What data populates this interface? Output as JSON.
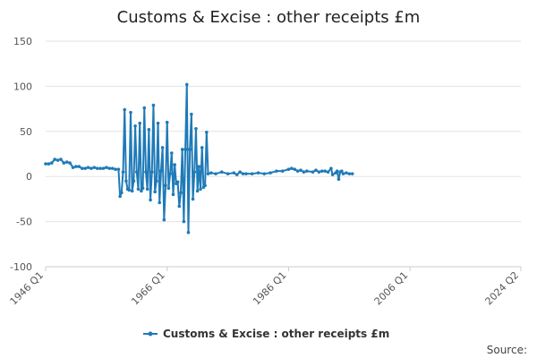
{
  "chart_data": {
    "type": "line",
    "title": "Customs & Excise : other receipts £m",
    "xlabel": "",
    "ylabel": "",
    "ylim": [
      -100,
      150
    ],
    "yticks": [
      "150",
      "100",
      "50",
      "0",
      "-50",
      "-100"
    ],
    "xticks": [
      "1946 Q1",
      "1966 Q1",
      "1986 Q1",
      "2006 Q1",
      "2024 Q2"
    ],
    "grid": true,
    "legend_position": "bottom",
    "series_color": "#1f7ab8",
    "source_label": "Source:",
    "series": [
      {
        "name": "Customs & Excise : other receipts £m",
        "points": [
          [
            "1946 Q1",
            14
          ],
          [
            "1946 Q3",
            14
          ],
          [
            "1947 Q1",
            15
          ],
          [
            "1947 Q3",
            19
          ],
          [
            "1948 Q1",
            18
          ],
          [
            "1948 Q3",
            19
          ],
          [
            "1949 Q1",
            15
          ],
          [
            "1949 Q3",
            16
          ],
          [
            "1950 Q1",
            15
          ],
          [
            "1950 Q3",
            10
          ],
          [
            "1951 Q1",
            11
          ],
          [
            "1951 Q3",
            11
          ],
          [
            "1952 Q1",
            9
          ],
          [
            "1952 Q3",
            9
          ],
          [
            "1953 Q1",
            10
          ],
          [
            "1953 Q3",
            9
          ],
          [
            "1954 Q1",
            10
          ],
          [
            "1954 Q3",
            9
          ],
          [
            "1955 Q1",
            9
          ],
          [
            "1955 Q3",
            9
          ],
          [
            "1956 Q1",
            10
          ],
          [
            "1956 Q3",
            9
          ],
          [
            "1957 Q1",
            9
          ],
          [
            "1957 Q3",
            8
          ],
          [
            "1958 Q1",
            8
          ],
          [
            "1958 Q2",
            -22
          ],
          [
            "1958 Q3",
            -18
          ],
          [
            "1958 Q4",
            5
          ],
          [
            "1959 Q1",
            74
          ],
          [
            "1959 Q2",
            -5
          ],
          [
            "1959 Q3",
            -14
          ],
          [
            "1959 Q4",
            -15
          ],
          [
            "1960 Q1",
            71
          ],
          [
            "1960 Q2",
            -16
          ],
          [
            "1960 Q3",
            -5
          ],
          [
            "1960 Q4",
            56
          ],
          [
            "1961 Q1",
            5
          ],
          [
            "1961 Q2",
            -14
          ],
          [
            "1961 Q3",
            59
          ],
          [
            "1961 Q4",
            -16
          ],
          [
            "1962 Q1",
            -13
          ],
          [
            "1962 Q2",
            76
          ],
          [
            "1962 Q3",
            5
          ],
          [
            "1962 Q4",
            -14
          ],
          [
            "1963 Q1",
            52
          ],
          [
            "1963 Q2",
            -26
          ],
          [
            "1963 Q3",
            5
          ],
          [
            "1963 Q4",
            79
          ],
          [
            "1964 Q1",
            -17
          ],
          [
            "1964 Q2",
            -5
          ],
          [
            "1964 Q3",
            59
          ],
          [
            "1964 Q4",
            -29
          ],
          [
            "1965 Q1",
            6
          ],
          [
            "1965 Q2",
            32
          ],
          [
            "1965 Q3",
            -48
          ],
          [
            "1965 Q4",
            -10
          ],
          [
            "1966 Q1",
            60
          ],
          [
            "1966 Q2",
            -13
          ],
          [
            "1966 Q3",
            3
          ],
          [
            "1966 Q4",
            26
          ],
          [
            "1967 Q1",
            -20
          ],
          [
            "1967 Q2",
            13
          ],
          [
            "1967 Q3",
            -8
          ],
          [
            "1967 Q4",
            -6
          ],
          [
            "1968 Q1",
            -33
          ],
          [
            "1968 Q2",
            -18
          ],
          [
            "1968 Q3",
            30
          ],
          [
            "1968 Q4",
            -50
          ],
          [
            "1969 Q1",
            30
          ],
          [
            "1969 Q2",
            102
          ],
          [
            "1969 Q3",
            -62
          ],
          [
            "1969 Q4",
            30
          ],
          [
            "1970 Q1",
            69
          ],
          [
            "1970 Q2",
            -25
          ],
          [
            "1970 Q3",
            5
          ],
          [
            "1970 Q4",
            53
          ],
          [
            "1971 Q1",
            -16
          ],
          [
            "1971 Q2",
            11
          ],
          [
            "1971 Q3",
            -14
          ],
          [
            "1971 Q4",
            32
          ],
          [
            "1972 Q1",
            -12
          ],
          [
            "1972 Q2",
            -10
          ],
          [
            "1972 Q3",
            49
          ],
          [
            "1972 Q4",
            3
          ],
          [
            "1973 Q2",
            4
          ],
          [
            "1974 Q1",
            3
          ],
          [
            "1975 Q1",
            5
          ],
          [
            "1976 Q1",
            3
          ],
          [
            "1977 Q1",
            4
          ],
          [
            "1977 Q3",
            2
          ],
          [
            "1978 Q1",
            5
          ],
          [
            "1978 Q3",
            3
          ],
          [
            "1979 Q1",
            3
          ],
          [
            "1980 Q1",
            3
          ],
          [
            "1981 Q1",
            4
          ],
          [
            "1982 Q1",
            3
          ],
          [
            "1983 Q1",
            4
          ],
          [
            "1984 Q1",
            6
          ],
          [
            "1985 Q1",
            6
          ],
          [
            "1986 Q1",
            8
          ],
          [
            "1986 Q3",
            9
          ],
          [
            "1987 Q1",
            8
          ],
          [
            "1987 Q3",
            6
          ],
          [
            "1988 Q1",
            7
          ],
          [
            "1988 Q3",
            5
          ],
          [
            "1989 Q1",
            6
          ],
          [
            "1990 Q1",
            5
          ],
          [
            "1990 Q3",
            7
          ],
          [
            "1991 Q1",
            5
          ],
          [
            "1991 Q3",
            6
          ],
          [
            "1992 Q1",
            6
          ],
          [
            "1992 Q3",
            5
          ],
          [
            "1993 Q1",
            9
          ],
          [
            "1993 Q2",
            2
          ],
          [
            "1993 Q4",
            4
          ],
          [
            "1994 Q1",
            6
          ],
          [
            "1994 Q2",
            -3
          ],
          [
            "1994 Q3",
            5
          ],
          [
            "1994 Q4",
            6
          ],
          [
            "1995 Q1",
            3
          ],
          [
            "1995 Q3",
            4
          ],
          [
            "1996 Q1",
            3
          ],
          [
            "1996 Q3",
            3
          ]
        ]
      }
    ]
  }
}
